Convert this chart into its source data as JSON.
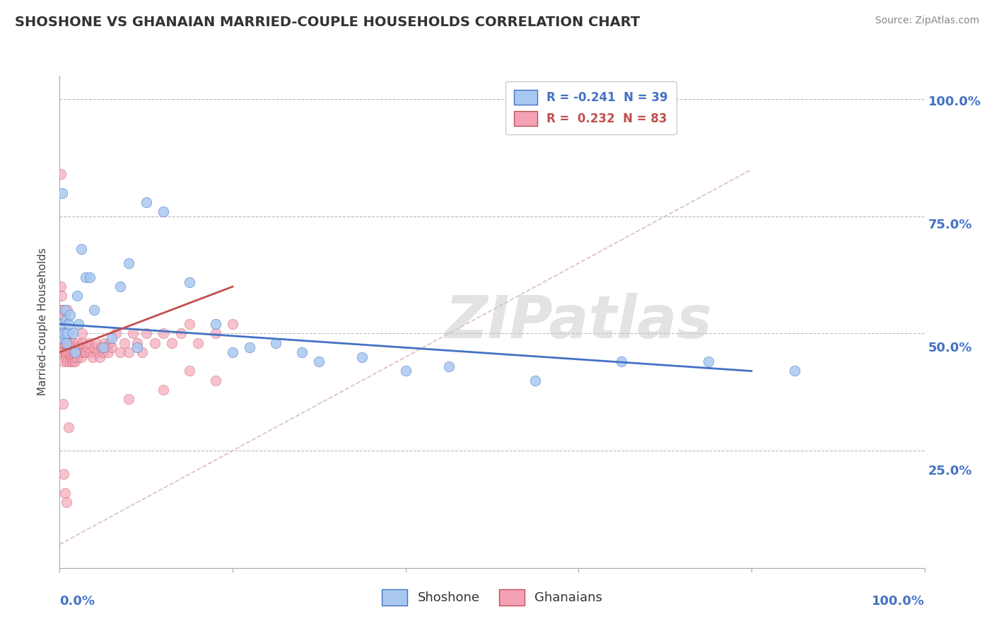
{
  "title": "SHOSHONE VS GHANAIAN MARRIED-COUPLE HOUSEHOLDS CORRELATION CHART",
  "source": "Source: ZipAtlas.com",
  "ylabel": "Married-couple Households",
  "legend_blue_label": "R = -0.241  N = 39",
  "legend_pink_label": "R =  0.232  N = 83",
  "legend_bottom_blue": "Shoshone",
  "legend_bottom_pink": "Ghanaians",
  "blue_color": "#A8C8F0",
  "pink_color": "#F4A0B5",
  "blue_line_color": "#4472C4",
  "pink_line_color": "#C0504D",
  "ref_line_color": "#CCAAAA",
  "watermark": "ZIPatlas",
  "shoshone_x": [
    0.002,
    0.003,
    0.004,
    0.005,
    0.006,
    0.007,
    0.008,
    0.009,
    0.01,
    0.012,
    0.015,
    0.018,
    0.02,
    0.022,
    0.025,
    0.03,
    0.035,
    0.04,
    0.05,
    0.06,
    0.07,
    0.08,
    0.09,
    0.1,
    0.12,
    0.15,
    0.18,
    0.2,
    0.22,
    0.25,
    0.28,
    0.3,
    0.35,
    0.4,
    0.45,
    0.55,
    0.65,
    0.75,
    0.85
  ],
  "shoshone_y": [
    0.52,
    0.8,
    0.49,
    0.5,
    0.55,
    0.53,
    0.48,
    0.5,
    0.52,
    0.54,
    0.5,
    0.46,
    0.58,
    0.52,
    0.68,
    0.62,
    0.62,
    0.55,
    0.47,
    0.49,
    0.6,
    0.65,
    0.47,
    0.78,
    0.76,
    0.61,
    0.52,
    0.46,
    0.47,
    0.48,
    0.46,
    0.44,
    0.45,
    0.42,
    0.43,
    0.4,
    0.44,
    0.44,
    0.42
  ],
  "ghanaian_x": [
    0.001,
    0.001,
    0.001,
    0.002,
    0.002,
    0.002,
    0.003,
    0.003,
    0.004,
    0.004,
    0.005,
    0.005,
    0.005,
    0.006,
    0.006,
    0.007,
    0.007,
    0.008,
    0.008,
    0.009,
    0.009,
    0.01,
    0.01,
    0.011,
    0.012,
    0.012,
    0.013,
    0.014,
    0.015,
    0.015,
    0.016,
    0.017,
    0.018,
    0.019,
    0.02,
    0.021,
    0.022,
    0.023,
    0.025,
    0.026,
    0.027,
    0.028,
    0.03,
    0.032,
    0.034,
    0.036,
    0.038,
    0.04,
    0.042,
    0.044,
    0.046,
    0.048,
    0.05,
    0.052,
    0.054,
    0.056,
    0.058,
    0.06,
    0.065,
    0.07,
    0.075,
    0.08,
    0.085,
    0.09,
    0.095,
    0.1,
    0.11,
    0.12,
    0.13,
    0.14,
    0.15,
    0.16,
    0.18,
    0.2,
    0.15,
    0.18,
    0.12,
    0.08,
    0.01,
    0.005,
    0.006,
    0.008,
    0.004
  ],
  "ghanaian_y": [
    0.84,
    0.6,
    0.55,
    0.52,
    0.58,
    0.48,
    0.55,
    0.5,
    0.46,
    0.48,
    0.5,
    0.54,
    0.44,
    0.46,
    0.48,
    0.45,
    0.49,
    0.46,
    0.5,
    0.55,
    0.44,
    0.46,
    0.5,
    0.48,
    0.44,
    0.47,
    0.46,
    0.45,
    0.44,
    0.48,
    0.46,
    0.45,
    0.44,
    0.46,
    0.45,
    0.48,
    0.47,
    0.46,
    0.45,
    0.5,
    0.48,
    0.46,
    0.46,
    0.47,
    0.48,
    0.46,
    0.45,
    0.47,
    0.48,
    0.46,
    0.45,
    0.47,
    0.46,
    0.48,
    0.47,
    0.46,
    0.48,
    0.47,
    0.5,
    0.46,
    0.48,
    0.46,
    0.5,
    0.48,
    0.46,
    0.5,
    0.48,
    0.5,
    0.48,
    0.5,
    0.52,
    0.48,
    0.5,
    0.52,
    0.42,
    0.4,
    0.38,
    0.36,
    0.3,
    0.2,
    0.16,
    0.14,
    0.35
  ],
  "blue_line_x": [
    0.0,
    0.8
  ],
  "blue_line_y": [
    0.52,
    0.42
  ],
  "pink_line_x": [
    0.0,
    0.2
  ],
  "pink_line_y": [
    0.46,
    0.6
  ],
  "ref_line_x": [
    0.0,
    0.8
  ],
  "ref_line_y": [
    0.05,
    0.85
  ],
  "xmin": 0.0,
  "xmax": 1.0,
  "ymin": 0.05,
  "ymax": 1.05
}
